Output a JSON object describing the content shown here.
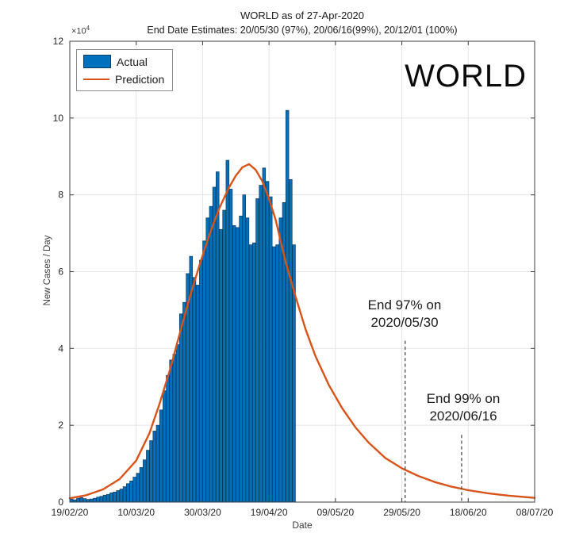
{
  "chart_data": {
    "type": "bar",
    "title": "WORLD as of 27-Apr-2020",
    "subtitle": "End Date Estimates: 20/05/30 (97%), 20/06/16(99%), 20/12/01 (100%)",
    "corner_label": "WORLD",
    "xlabel": "Date",
    "ylabel": "New Cases / Day",
    "y_multiplier_base": "×10",
    "y_multiplier_exp": "4",
    "ylim": [
      0,
      12
    ],
    "y_ticks": [
      0,
      2,
      4,
      6,
      8,
      10,
      12
    ],
    "x_span_days": 140,
    "x_tick_interval_days": 20,
    "x_tick_labels": [
      "19/02/20",
      "10/03/20",
      "30/03/20",
      "19/04/20",
      "09/05/20",
      "29/05/20",
      "18/06/20",
      "08/07/20"
    ],
    "grid": true,
    "legend": [
      "Actual",
      "Prediction"
    ],
    "legend_position": "northwest",
    "colors": {
      "bar": "#0072BD",
      "bar_edge": "#0d3a5f",
      "prediction": "#D95319",
      "grid": "#e4e4e4",
      "axis": "#3c3c3c",
      "dashed": "#4d4d4d"
    },
    "series": [
      {
        "name": "Actual",
        "type": "bar",
        "units": "x10^4 cases/day",
        "dates": [
          "19/02",
          "20/02",
          "21/02",
          "22/02",
          "23/02",
          "24/02",
          "25/02",
          "26/02",
          "27/02",
          "28/02",
          "29/02",
          "01/03",
          "02/03",
          "03/03",
          "04/03",
          "05/03",
          "06/03",
          "07/03",
          "08/03",
          "09/03",
          "10/03",
          "11/03",
          "12/03",
          "13/03",
          "14/03",
          "15/03",
          "16/03",
          "17/03",
          "18/03",
          "19/03",
          "20/03",
          "21/03",
          "22/03",
          "23/03",
          "24/03",
          "25/03",
          "26/03",
          "27/03",
          "28/03",
          "29/03",
          "30/03",
          "31/03",
          "01/04",
          "02/04",
          "03/04",
          "04/04",
          "05/04",
          "06/04",
          "07/04",
          "08/04",
          "09/04",
          "10/04",
          "11/04",
          "12/04",
          "13/04",
          "14/04",
          "15/04",
          "16/04",
          "17/04",
          "18/04",
          "19/04",
          "20/04",
          "21/04",
          "22/04",
          "23/04",
          "24/04",
          "25/04",
          "26/04"
        ],
        "values": [
          0.08,
          0.06,
          0.1,
          0.12,
          0.09,
          0.07,
          0.08,
          0.1,
          0.13,
          0.15,
          0.18,
          0.2,
          0.24,
          0.26,
          0.3,
          0.34,
          0.4,
          0.48,
          0.55,
          0.65,
          0.75,
          0.9,
          1.1,
          1.35,
          1.6,
          1.85,
          2.0,
          2.4,
          2.9,
          3.3,
          3.7,
          3.85,
          4.1,
          4.9,
          5.2,
          5.95,
          6.4,
          5.85,
          5.65,
          6.3,
          6.8,
          7.4,
          7.7,
          8.2,
          8.6,
          7.1,
          7.6,
          8.9,
          8.15,
          7.2,
          7.15,
          7.45,
          8.0,
          7.4,
          6.7,
          6.75,
          7.9,
          8.25,
          8.7,
          8.35,
          7.95,
          6.65,
          6.7,
          7.4,
          7.8,
          10.2,
          8.4,
          6.7
        ]
      },
      {
        "name": "Prediction",
        "type": "line",
        "peak_value": 8.8,
        "peak_day": 54,
        "x_days": [
          0,
          5,
          10,
          15,
          20,
          24,
          27,
          30,
          33,
          36,
          39,
          42,
          45,
          48,
          50,
          52,
          54,
          56,
          58,
          60,
          62,
          65,
          68,
          71,
          74,
          78,
          82,
          86,
          90,
          95,
          100,
          105,
          110,
          115,
          120,
          126,
          132,
          140
        ],
        "values": [
          0.1,
          0.18,
          0.33,
          0.6,
          1.08,
          1.8,
          2.55,
          3.4,
          4.35,
          5.3,
          6.15,
          6.95,
          7.65,
          8.2,
          8.5,
          8.72,
          8.8,
          8.65,
          8.35,
          7.9,
          7.35,
          6.25,
          5.35,
          4.5,
          3.8,
          3.05,
          2.45,
          1.95,
          1.55,
          1.15,
          0.88,
          0.68,
          0.52,
          0.4,
          0.31,
          0.23,
          0.17,
          0.11
        ]
      }
    ],
    "annotations": [
      {
        "line1": "End 97% on",
        "line2": "2020/05/30",
        "x_day": 101,
        "line_top_value": 4.2
      },
      {
        "line1": "End 99% on",
        "line2": "2020/06/16",
        "x_day": 118,
        "line_top_value": 1.75
      }
    ]
  }
}
